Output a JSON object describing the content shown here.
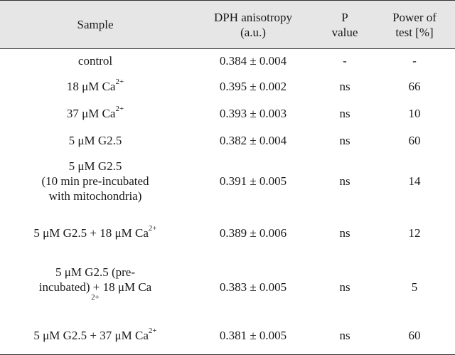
{
  "table": {
    "headers": {
      "sample": "Sample",
      "anisotropy_line1": "DPH anisotropy",
      "anisotropy_line2": "(a.u.)",
      "p_line1": "P",
      "p_line2": "value",
      "power_line1": "Power of",
      "power_line2": "test [%]"
    },
    "rows": [
      {
        "sample": "control",
        "anisotropy": "0.384 ± 0.004",
        "p_value": "-",
        "power": "-"
      },
      {
        "sample_pre": "18 μM Ca",
        "sample_sup": "2+",
        "anisotropy": "0.395 ± 0.002",
        "p_value": "ns",
        "power": "66"
      },
      {
        "sample_pre": "37 μM Ca",
        "sample_sup": "2+",
        "anisotropy": "0.393 ± 0.003",
        "p_value": "ns",
        "power": "10"
      },
      {
        "sample": "5 μM G2.5",
        "anisotropy": "0.382 ± 0.004",
        "p_value": "ns",
        "power": "60"
      },
      {
        "sample_line1": "5 μM G2.5",
        "sample_line2": "(10 min pre-incubated",
        "sample_line3": "with mitochondria)",
        "anisotropy": "0.391 ± 0.005",
        "p_value": "ns",
        "power": "14"
      },
      {
        "sample_pre": "5 μM G2.5 + 18 μM Ca",
        "sample_sup": "2+",
        "anisotropy": "0.389 ± 0.006",
        "p_value": "ns",
        "power": "12"
      },
      {
        "sample_line1": "5 μM G2.5 (pre-",
        "sample_line2_pre": "incubated) + 18 μM Ca",
        "sample_sup": "2+",
        "anisotropy": "0.383 ± 0.005",
        "p_value": "ns",
        "power": "5"
      },
      {
        "sample_pre": "5 μM G2.5 + 37 μM Ca",
        "sample_sup": "2+",
        "anisotropy": "0.381 ± 0.005",
        "p_value": "ns",
        "power": "60"
      }
    ]
  }
}
